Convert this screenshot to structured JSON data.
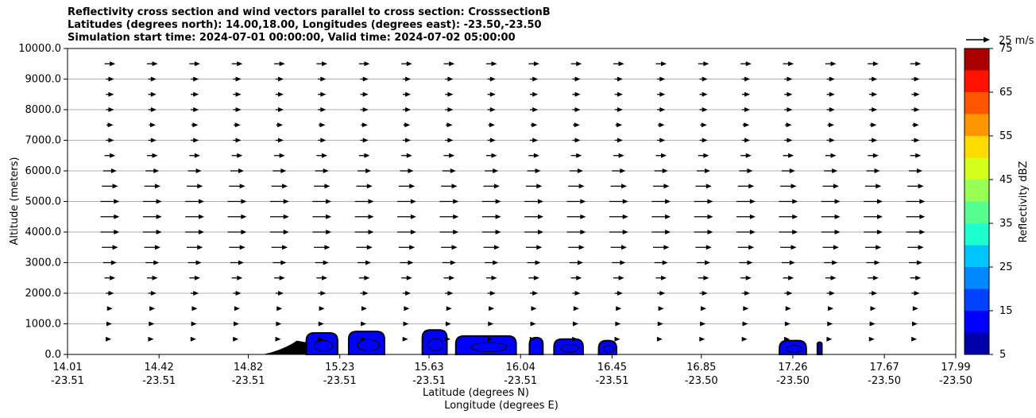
{
  "chart_data": {
    "type": "heatmap",
    "title_lines": [
      "Reflectivity cross section and wind vectors parallel to cross section: CrosssectionB",
      "Latitudes (degrees north): 14.00,18.00, Longitudes (degrees east): -23.50,-23.50",
      "Simulation start time: 2024-07-01 00:00:00, Valid time: 2024-07-02 05:00:00"
    ],
    "ylabel": "Altitude (meters)",
    "xlabel_lat": "Latitude (degrees N)",
    "xlabel_lon": "Longitude (degrees E)",
    "ylim": [
      0,
      10000
    ],
    "yticks": [
      "0.0",
      "1000.0",
      "2000.0",
      "3000.0",
      "4000.0",
      "5000.0",
      "6000.0",
      "7000.0",
      "8000.0",
      "9000.0",
      "10000.0"
    ],
    "ytick_values": [
      0,
      1000,
      2000,
      3000,
      4000,
      5000,
      6000,
      7000,
      8000,
      9000,
      10000
    ],
    "xlim_lat": [
      14.01,
      17.99
    ],
    "xticks": [
      {
        "lat": "14.01",
        "lon": "-23.51",
        "value": 14.01
      },
      {
        "lat": "14.42",
        "lon": "-23.51",
        "value": 14.42
      },
      {
        "lat": "14.82",
        "lon": "-23.51",
        "value": 14.82
      },
      {
        "lat": "15.23",
        "lon": "-23.51",
        "value": 15.23
      },
      {
        "lat": "15.63",
        "lon": "-23.51",
        "value": 15.63
      },
      {
        "lat": "16.04",
        "lon": "-23.51",
        "value": 16.04
      },
      {
        "lat": "16.45",
        "lon": "-23.51",
        "value": 16.45
      },
      {
        "lat": "16.85",
        "lon": "-23.50",
        "value": 16.85
      },
      {
        "lat": "17.26",
        "lon": "-23.50",
        "value": 17.26
      },
      {
        "lat": "17.67",
        "lon": "-23.50",
        "value": 17.67
      },
      {
        "lat": "17.99",
        "lon": "-23.50",
        "value": 17.99
      }
    ],
    "grid": "horizontal",
    "colorbar": {
      "label": "Reflectivity dBZ",
      "ticks": [
        "5",
        "15",
        "25",
        "35",
        "45",
        "55",
        "65",
        "75"
      ],
      "levels": [
        5,
        10,
        15,
        20,
        25,
        30,
        35,
        40,
        45,
        50,
        55,
        60,
        65,
        70,
        75
      ],
      "colors": [
        "#0000aa",
        "#0000ff",
        "#0040ff",
        "#0088ff",
        "#00c4ff",
        "#1effd0",
        "#55ff8f",
        "#98ff54",
        "#d4ff1a",
        "#ffdc00",
        "#ff9600",
        "#ff5400",
        "#ff1200",
        "#aa0000"
      ]
    },
    "quiver_key": {
      "label": "25 m/s",
      "speed": 25
    },
    "wind_columns_lat": [
      14.2,
      14.39,
      14.58,
      14.77,
      14.96,
      15.15,
      15.34,
      15.53,
      15.72,
      15.91,
      16.1,
      16.29,
      16.48,
      16.67,
      16.86,
      17.05,
      17.24,
      17.43,
      17.62,
      17.81
    ],
    "wind_levels": [
      {
        "z": 500,
        "u": 2
      },
      {
        "z": 1000,
        "u": 3
      },
      {
        "z": 1500,
        "u": 4
      },
      {
        "z": 2000,
        "u": 6
      },
      {
        "z": 2500,
        "u": 8
      },
      {
        "z": 3000,
        "u": 10
      },
      {
        "z": 3500,
        "u": 12
      },
      {
        "z": 4000,
        "u": 14
      },
      {
        "z": 4500,
        "u": 14
      },
      {
        "z": 5000,
        "u": 14
      },
      {
        "z": 5500,
        "u": 12
      },
      {
        "z": 6000,
        "u": 10
      },
      {
        "z": 6500,
        "u": 8
      },
      {
        "z": 7000,
        "u": 6
      },
      {
        "z": 7500,
        "u": 5
      },
      {
        "z": 8000,
        "u": 6
      },
      {
        "z": 8500,
        "u": 6
      },
      {
        "z": 9000,
        "u": 6
      },
      {
        "z": 9500,
        "u": 8
      }
    ],
    "echo_cells": [
      {
        "lat_start": 15.08,
        "lat_end": 15.22,
        "top": 700,
        "dbz": 12
      },
      {
        "lat_start": 15.27,
        "lat_end": 15.43,
        "top": 750,
        "dbz": 12
      },
      {
        "lat_start": 15.6,
        "lat_end": 15.71,
        "top": 800,
        "dbz": 10
      },
      {
        "lat_start": 15.75,
        "lat_end": 16.02,
        "top": 600,
        "dbz": 10
      },
      {
        "lat_start": 16.08,
        "lat_end": 16.14,
        "top": 550,
        "dbz": 10
      },
      {
        "lat_start": 16.19,
        "lat_end": 16.32,
        "top": 500,
        "dbz": 10
      },
      {
        "lat_start": 16.39,
        "lat_end": 16.47,
        "top": 450,
        "dbz": 10
      },
      {
        "lat_start": 17.2,
        "lat_end": 17.32,
        "top": 450,
        "dbz": 10
      },
      {
        "lat_start": 17.37,
        "lat_end": 17.39,
        "top": 400,
        "dbz": 8
      }
    ],
    "terrain": {
      "lat_start": 14.88,
      "lat_end": 15.12,
      "peak": 450
    }
  }
}
